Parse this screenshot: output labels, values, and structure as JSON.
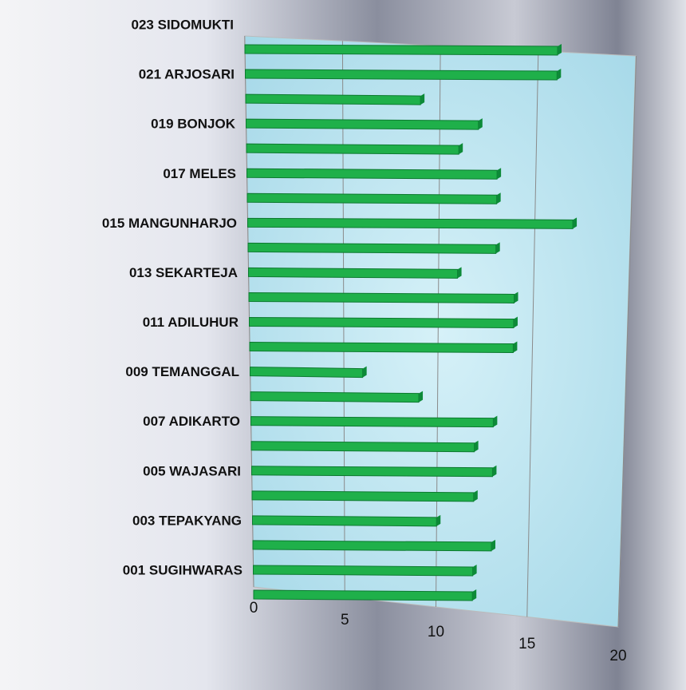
{
  "chart_data": {
    "type": "bar",
    "orientation": "horizontal",
    "categories": [
      "001 SUGIHWARAS",
      null,
      "003 TEPAKYANG",
      null,
      "005 WAJASARI",
      null,
      "007 ADIKARTO",
      null,
      "009 TEMANGGAL",
      null,
      "011 ADILUHUR",
      null,
      "013 SEKARTEJA",
      null,
      "015 MANGUNHARJO",
      null,
      "017 MELES",
      null,
      "019 BONJOK",
      null,
      "021 ARJOSARI",
      null,
      "023 SIDOMUKTI"
    ],
    "values": [
      12,
      12,
      13,
      10,
      12,
      13,
      12,
      13,
      9,
      6,
      14,
      14,
      14,
      11,
      13,
      17,
      13,
      13,
      11,
      12,
      9,
      16,
      16
    ],
    "color": "#1fb04a",
    "xlim": [
      0,
      20
    ],
    "xticks": [
      0,
      5,
      10,
      15,
      20
    ],
    "grid": true
  }
}
